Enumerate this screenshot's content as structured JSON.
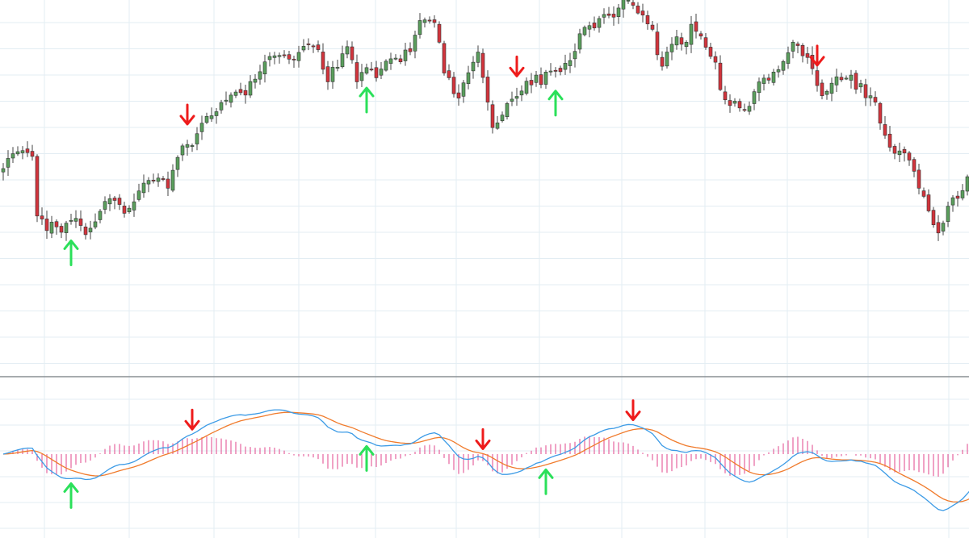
{
  "chart_data": {
    "type": "candlestick",
    "title": "",
    "colors": {
      "up": "#5a9e5c",
      "down": "#d1343c",
      "sell_arrow": "#ee1b1b",
      "buy_arrow": "#2be05a",
      "macd": "#3c9be6",
      "signal": "#f07b2c",
      "histogram": "#e0458b",
      "grid": "#e3edf3"
    },
    "price_range": [
      0,
      100
    ],
    "close": [
      55,
      58,
      59.4,
      60,
      60.3,
      59.7,
      58.6,
      41,
      40.1,
      36.7,
      39.2,
      37.8,
      36.2,
      38.9,
      39.7,
      40.3,
      38.2,
      35.5,
      37.4,
      39.3,
      42.4,
      45.3,
      46.1,
      45.6,
      44.4,
      41.8,
      43.3,
      45.2,
      48.4,
      50.7,
      51.5,
      51.4,
      52.2,
      51.8,
      49.2,
      54.5,
      58.3,
      61.7,
      62.1,
      61.8,
      65.3,
      68.4,
      70.4,
      70.6,
      71.8,
      74.5,
      75.2,
      76.7,
      77.6,
      77.4,
      76.7,
      80.7,
      81.4,
      83.6,
      86.5,
      88.1,
      88.3,
      88.4,
      88.5,
      87.3,
      87.2,
      89.3,
      91.1,
      91.8,
      91.2,
      90.1,
      84.3,
      80.6,
      84.9,
      84.9,
      88.9,
      91,
      87.1,
      80.6,
      83.4,
      84.8,
      84.3,
      81.8,
      84.4,
      86.7,
      87.4,
      87.6,
      86.5,
      90,
      89.5,
      94.4,
      98.7,
      98.9,
      98.8,
      98.1,
      92.3,
      83.2,
      81.8,
      77.1,
      75.8,
      80.3,
      83.3,
      86.4,
      89.4,
      81.9,
      74.6,
      67.1,
      68.5,
      70.8,
      74.2,
      75.5,
      76.3,
      77.9,
      80.8,
      79.7,
      82.6,
      79.8,
      83.5,
      83.8,
      83.9,
      83.6,
      86.1,
      86.9,
      89.6,
      94.8,
      96.7,
      97.2,
      96.5,
      99.3,
      100.5,
      100.2,
      99.7,
      102.4,
      104.9,
      104.7,
      103.2,
      100.9,
      100.3,
      97.7,
      96.1,
      88.6,
      85.2,
      89.4,
      91.7,
      93.9,
      91.7,
      92.3,
      97.6,
      95.5,
      94.1,
      90.8,
      88.1,
      86.4,
      78.3,
      75.3,
      73.6,
      74.9,
      72.9,
      72.4,
      73.4,
      77.7,
      80.6,
      81.7,
      81.1,
      83.5,
      84.2,
      86.6,
      89.2,
      92.3,
      91.3,
      88.3,
      87.8,
      84.5,
      79.5,
      76.5,
      77.8,
      80.2,
      82.1,
      81.2,
      81.7,
      82.6,
      78.4,
      80.1,
      75.9,
      76.5,
      74.6,
      68.4,
      64.8,
      61.3,
      59.5,
      60.2,
      59.6,
      57.5,
      54.2,
      49.2,
      46.8,
      42.5,
      38.4,
      36,
      38.9,
      43.9,
      46.4,
      46.2,
      48.5,
      52.6,
      55.7,
      55,
      52.9,
      47.4,
      40.5,
      38.7,
      39.3,
      41.6,
      44.6
    ],
    "signals": {
      "sell_price_pane": [
        38,
        106,
        168
      ],
      "buy_price_pane": [
        14,
        75,
        114
      ],
      "sell_indicator": [
        39,
        99,
        130
      ],
      "buy_indicator": [
        14,
        75,
        112
      ]
    },
    "indicator": {
      "name": "MACD",
      "histogram_scale": 0.4
    }
  }
}
